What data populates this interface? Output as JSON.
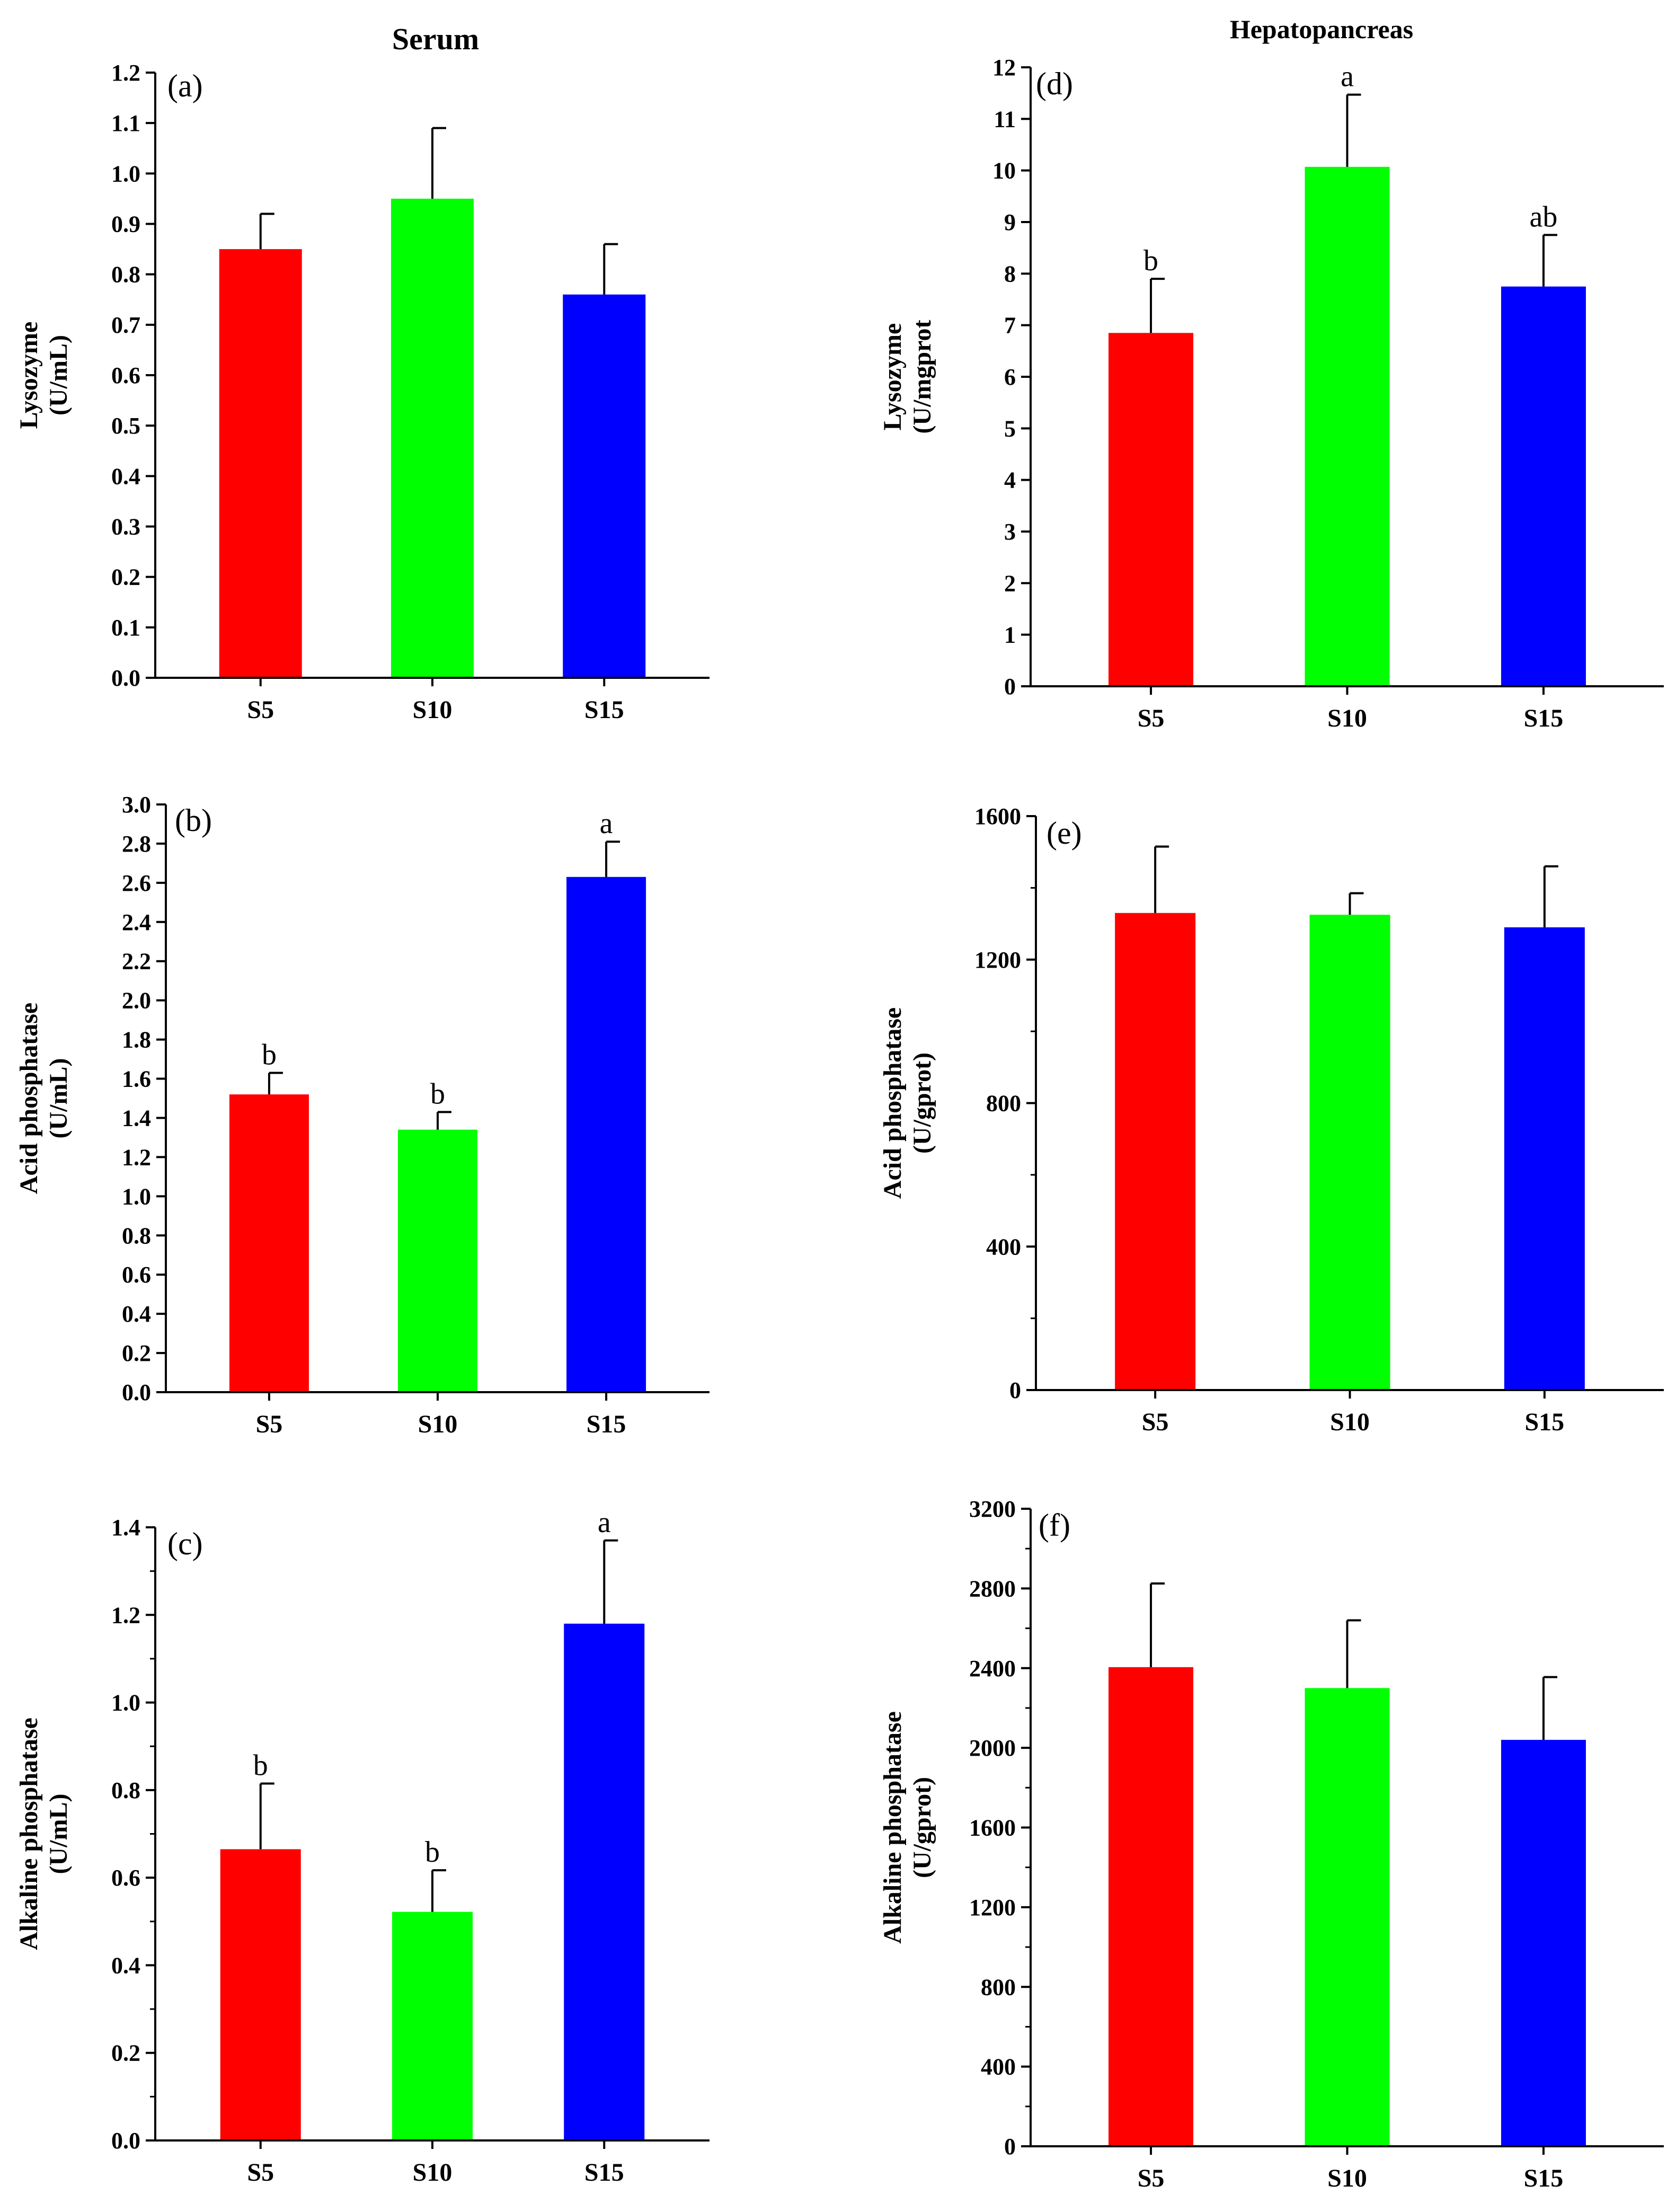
{
  "figure": {
    "column_titles": [
      "Serum",
      "Hepatopancreas"
    ],
    "colors": {
      "S5": "#ff0000",
      "S10": "#00ff00",
      "S15": "#0000ff",
      "axis": "#000000"
    }
  },
  "chart_data": [
    {
      "type": "bar",
      "panel": "(a)",
      "column": "Serum",
      "categories": [
        "S5",
        "S10",
        "S15"
      ],
      "values": [
        0.85,
        0.95,
        0.76
      ],
      "errors": [
        0.07,
        0.14,
        0.1
      ],
      "letters": [
        "",
        "",
        ""
      ],
      "ylabel": [
        "Lysozyme",
        "(U/mL)"
      ],
      "ylim": [
        0,
        1.2
      ],
      "ticks": [
        0.0,
        0.1,
        0.2,
        0.3,
        0.4,
        0.5,
        0.6,
        0.7,
        0.8,
        0.9,
        1.0,
        1.1,
        1.2
      ],
      "minor_ticks": false,
      "decimals": 1
    },
    {
      "type": "bar",
      "panel": "(b)",
      "column": "Serum",
      "categories": [
        "S5",
        "S10",
        "S15"
      ],
      "values": [
        1.52,
        1.34,
        2.63
      ],
      "errors": [
        0.11,
        0.09,
        0.18
      ],
      "letters": [
        "b",
        "b",
        "a"
      ],
      "ylabel": [
        "Acid phosphatase",
        "(U/mL)"
      ],
      "ylim": [
        0,
        3.0
      ],
      "ticks": [
        0.0,
        0.2,
        0.4,
        0.6,
        0.8,
        1.0,
        1.2,
        1.4,
        1.6,
        1.8,
        2.0,
        2.2,
        2.4,
        2.6,
        2.8,
        3.0
      ],
      "minor_ticks": false,
      "decimals": 1
    },
    {
      "type": "bar",
      "panel": "(c)",
      "column": "Serum",
      "categories": [
        "S5",
        "S10",
        "S15"
      ],
      "values": [
        0.665,
        0.522,
        1.18
      ],
      "errors": [
        0.15,
        0.095,
        0.19
      ],
      "letters": [
        "b",
        "b",
        "a"
      ],
      "ylabel": [
        "Alkaline phosphatase",
        "(U/mL)"
      ],
      "ylim": [
        0,
        1.4
      ],
      "ticks": [
        0.0,
        0.2,
        0.4,
        0.6,
        0.8,
        1.0,
        1.2,
        1.4
      ],
      "minor_ticks": true,
      "decimals": 1
    },
    {
      "type": "bar",
      "panel": "(d)",
      "column": "Hepatopancreas",
      "categories": [
        "S5",
        "S10",
        "S15"
      ],
      "values": [
        6.85,
        10.07,
        7.75
      ],
      "errors": [
        1.05,
        1.4,
        1.0
      ],
      "letters": [
        "b",
        "a",
        "ab"
      ],
      "ylabel": [
        "Lysozyme",
        "(U/mgprot"
      ],
      "ylim": [
        0,
        12
      ],
      "ticks": [
        0,
        1,
        2,
        3,
        4,
        5,
        6,
        7,
        8,
        9,
        10,
        11,
        12
      ],
      "minor_ticks": false,
      "decimals": 0
    },
    {
      "type": "bar",
      "panel": "(e)",
      "column": "Hepatopancreas",
      "categories": [
        "S5",
        "S10",
        "S15"
      ],
      "values": [
        1330,
        1325,
        1290
      ],
      "errors": [
        185,
        60,
        170
      ],
      "letters": [
        "",
        "",
        ""
      ],
      "ylabel": [
        "Acid phosphatase",
        "(U/gprot)"
      ],
      "ylim": [
        0,
        1600
      ],
      "ticks": [
        0,
        400,
        800,
        1200,
        1600
      ],
      "minor_ticks": true,
      "decimals": 0
    },
    {
      "type": "bar",
      "panel": "(f)",
      "column": "Hepatopancreas",
      "categories": [
        "S5",
        "S10",
        "S15"
      ],
      "values": [
        2405,
        2300,
        2040
      ],
      "errors": [
        420,
        340,
        315
      ],
      "letters": [
        "",
        "",
        ""
      ],
      "ylabel": [
        "Alkaline phosphatase",
        "(U/gprot)"
      ],
      "ylim": [
        0,
        3200
      ],
      "ticks": [
        0,
        400,
        800,
        1200,
        1600,
        2000,
        2400,
        2800,
        3200
      ],
      "minor_ticks": true,
      "decimals": 0
    }
  ]
}
